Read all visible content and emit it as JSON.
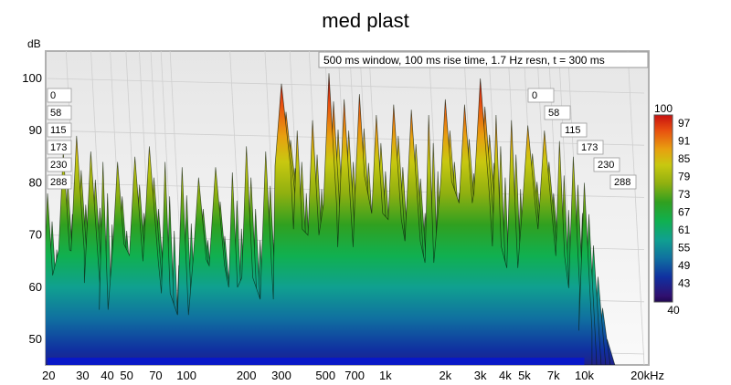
{
  "chart_data": {
    "type": "area",
    "title": "med plast",
    "info_box": "500 ms window, 100 ms rise time,  1.7 Hz resn, t = 300 ms",
    "ylabel": "dB",
    "xunit": "kHz",
    "xscale": "log",
    "xlim": [
      20,
      20000
    ],
    "ylim": [
      45,
      105
    ],
    "y_ticks": [
      "100",
      "90",
      "80",
      "70",
      "60",
      "50"
    ],
    "x_ticks": [
      {
        "v": 20,
        "label": "20"
      },
      {
        "v": 30,
        "label": "30"
      },
      {
        "v": 40,
        "label": "40"
      },
      {
        "v": 50,
        "label": "50"
      },
      {
        "v": 70,
        "label": "70"
      },
      {
        "v": 100,
        "label": "100"
      },
      {
        "v": 200,
        "label": "200"
      },
      {
        "v": 300,
        "label": "300"
      },
      {
        "v": 500,
        "label": "500"
      },
      {
        "v": 700,
        "label": "700"
      },
      {
        "v": 1000,
        "label": "1k"
      },
      {
        "v": 2000,
        "label": "2k"
      },
      {
        "v": 3000,
        "label": "3k"
      },
      {
        "v": 4000,
        "label": "4k"
      },
      {
        "v": 5000,
        "label": "5k"
      },
      {
        "v": 7000,
        "label": "7k"
      },
      {
        "v": 10000,
        "label": "10k"
      },
      {
        "v": 20000,
        "label": "20kHz"
      }
    ],
    "time_labels_ms": [
      "0",
      "58",
      "115",
      "173",
      "230",
      "288"
    ],
    "time_slices_ms": [
      0,
      58,
      115,
      173,
      230,
      288
    ],
    "slice_decay_db": [
      0,
      4,
      8,
      12,
      16,
      20
    ],
    "peaks": [
      {
        "f": 20,
        "db": 78
      },
      {
        "f": 24,
        "db": 86
      },
      {
        "f": 28,
        "db": 89
      },
      {
        "f": 33,
        "db": 86
      },
      {
        "f": 38,
        "db": 84
      },
      {
        "f": 45,
        "db": 84
      },
      {
        "f": 55,
        "db": 85
      },
      {
        "f": 65,
        "db": 87
      },
      {
        "f": 78,
        "db": 84
      },
      {
        "f": 95,
        "db": 83
      },
      {
        "f": 115,
        "db": 81
      },
      {
        "f": 140,
        "db": 83
      },
      {
        "f": 170,
        "db": 82
      },
      {
        "f": 200,
        "db": 87
      },
      {
        "f": 250,
        "db": 86
      },
      {
        "f": 300,
        "db": 99
      },
      {
        "f": 360,
        "db": 90
      },
      {
        "f": 430,
        "db": 92
      },
      {
        "f": 520,
        "db": 101
      },
      {
        "f": 620,
        "db": 96
      },
      {
        "f": 740,
        "db": 97
      },
      {
        "f": 900,
        "db": 93
      },
      {
        "f": 1100,
        "db": 95
      },
      {
        "f": 1350,
        "db": 94
      },
      {
        "f": 1650,
        "db": 93
      },
      {
        "f": 2000,
        "db": 96
      },
      {
        "f": 2500,
        "db": 95
      },
      {
        "f": 3000,
        "db": 100
      },
      {
        "f": 3600,
        "db": 93
      },
      {
        "f": 4300,
        "db": 92
      },
      {
        "f": 5200,
        "db": 91
      },
      {
        "f": 6300,
        "db": 90
      },
      {
        "f": 7500,
        "db": 88
      },
      {
        "f": 8800,
        "db": 85
      },
      {
        "f": 10000,
        "db": 80
      }
    ],
    "colorbar": {
      "top_label": "100",
      "bottom_label": "40",
      "ticks": [
        "97",
        "91",
        "85",
        "79",
        "73",
        "67",
        "61",
        "55",
        "49",
        "43"
      ],
      "stops": [
        {
          "v": 100,
          "color": "#c81010"
        },
        {
          "v": 95,
          "color": "#e85010"
        },
        {
          "v": 89,
          "color": "#e8a010"
        },
        {
          "v": 84,
          "color": "#c8c810"
        },
        {
          "v": 78,
          "color": "#90b010"
        },
        {
          "v": 72,
          "color": "#30a020"
        },
        {
          "v": 66,
          "color": "#10b050"
        },
        {
          "v": 60,
          "color": "#10a090"
        },
        {
          "v": 54,
          "color": "#1070a0"
        },
        {
          "v": 48,
          "color": "#1030a0"
        },
        {
          "v": 42,
          "color": "#301070"
        },
        {
          "v": 40,
          "color": "#200850"
        }
      ]
    },
    "grid": true,
    "legend": "right"
  }
}
